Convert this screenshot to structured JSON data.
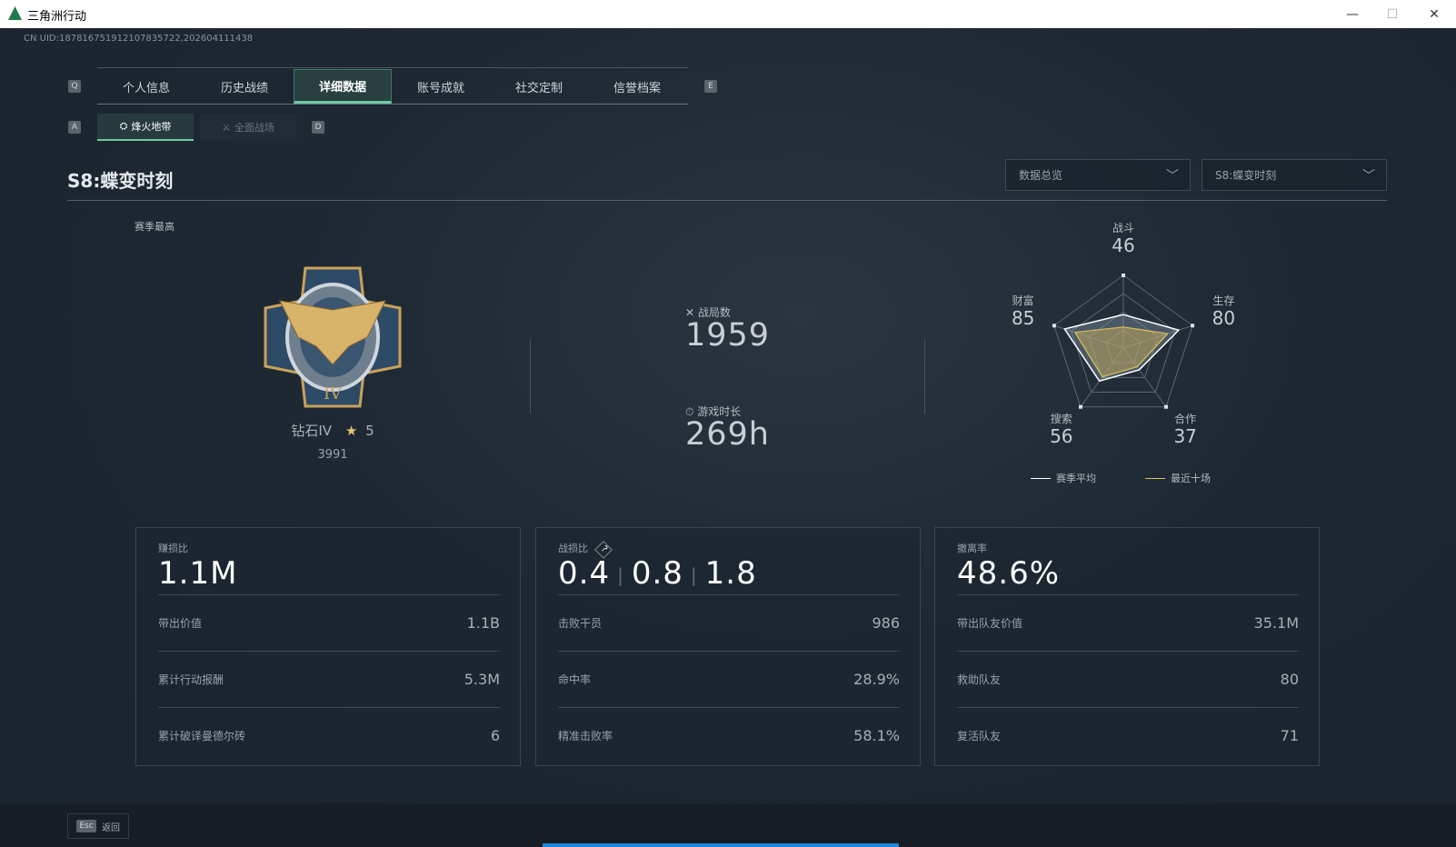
{
  "window": {
    "title": "三角洲行动",
    "minimize": "—",
    "maximize": "☐",
    "close": "✕"
  },
  "uid": "CN UID:18781675191210783572​2,202604111438",
  "nav": {
    "prev_key": "Q",
    "next_key": "E",
    "tabs": [
      {
        "label": "个人信息"
      },
      {
        "label": "历史战绩"
      },
      {
        "label": "详细数据"
      },
      {
        "label": "账号成就"
      },
      {
        "label": "社交定制"
      },
      {
        "label": "信誉档案"
      }
    ],
    "active": 2
  },
  "subnav": {
    "prev_key": "A",
    "next_key": "D",
    "tabs": [
      {
        "label": "烽火地带"
      },
      {
        "label": "全面战场"
      }
    ],
    "active": 0
  },
  "season": {
    "title": "S8:蝶变时刻"
  },
  "filters": {
    "view": "数据总览",
    "season": "S8:蝶变时刻"
  },
  "rank": {
    "label": "赛季最高",
    "name": "钻石IV",
    "stars": "5",
    "score": "3991"
  },
  "summary": {
    "matches_label": "战局数",
    "matches": "1959",
    "time_label": "游戏时长",
    "time": "269h"
  },
  "radar": {
    "axes": [
      {
        "label": "战斗",
        "value": "46",
        "avg": 46,
        "recent": 29
      },
      {
        "label": "生存",
        "value": "80",
        "avg": 80,
        "recent": 64
      },
      {
        "label": "合作",
        "value": "37",
        "avg": 37,
        "recent": 32
      },
      {
        "label": "搜索",
        "value": "56",
        "avg": 56,
        "recent": 49
      },
      {
        "label": "财富",
        "value": "85",
        "avg": 85,
        "recent": 70
      }
    ],
    "max": 100,
    "legend": {
      "avg": "赛季平均",
      "recent": "最近十场"
    },
    "colors": {
      "avg": "#ffffff",
      "recent": "#d9c35a"
    }
  },
  "panels": [
    {
      "label": "赚损比",
      "big": "1.1M",
      "rows": [
        {
          "k": "带出价值",
          "v": "1.1B"
        },
        {
          "k": "累计行动报酬",
          "v": "5.3M"
        },
        {
          "k": "累计破译曼德尔砖",
          "v": "6"
        }
      ]
    },
    {
      "label": "战损比",
      "help": "?",
      "big_parts": [
        "0.4",
        "0.8",
        "1.8"
      ],
      "rows": [
        {
          "k": "击败干员",
          "v": "986"
        },
        {
          "k": "命中率",
          "v": "28.9%"
        },
        {
          "k": "精准击败率",
          "v": "58.1%"
        }
      ]
    },
    {
      "label": "撤离率",
      "big": "48.6%",
      "rows": [
        {
          "k": "带出队友价值",
          "v": "35.1M"
        },
        {
          "k": "救助队友",
          "v": "80"
        },
        {
          "k": "复活队友",
          "v": "71"
        }
      ]
    }
  ],
  "footer": {
    "esc_key": "Esc",
    "back_label": "返回"
  },
  "colors": {
    "accent": "#6fc7a3",
    "progress": "#1e88d8"
  }
}
